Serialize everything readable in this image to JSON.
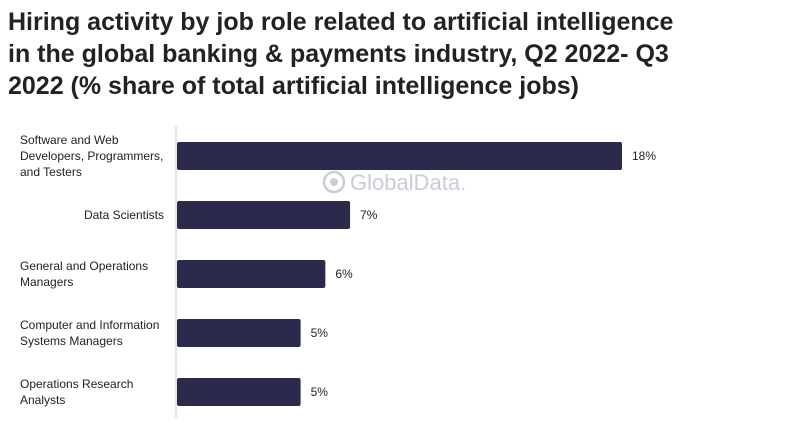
{
  "title_lines": [
    "Hiring activity by job role related to artificial intelligence",
    "in the global banking & payments industry, Q2 2022- Q3",
    "2022 (% share of total artificial intelligence jobs)"
  ],
  "watermark": "GlobalData.",
  "colors": {
    "bar": "#2b2a4c",
    "axis": "#cccccc",
    "watermark": "#c9cdd6"
  },
  "chart_data": {
    "type": "bar",
    "orientation": "horizontal",
    "title": "Hiring activity by job role related to artificial intelligence in the global banking & payments industry, Q2 2022- Q3 2022 (% share of total artificial intelligence jobs)",
    "categories": [
      [
        "Software and Web",
        "Developers, Programmers,",
        "and Testers"
      ],
      [
        "Data Scientists"
      ],
      [
        "General and Operations",
        "Managers"
      ],
      [
        "Computer and Information",
        "Systems Managers"
      ],
      [
        "Operations Research",
        "Analysts"
      ]
    ],
    "values": [
      18,
      7,
      6,
      5,
      5
    ],
    "value_labels": [
      "18%",
      "7%",
      "6%",
      "5%",
      "5%"
    ],
    "xlim": [
      0,
      18
    ],
    "grid": false,
    "legend": "none"
  }
}
